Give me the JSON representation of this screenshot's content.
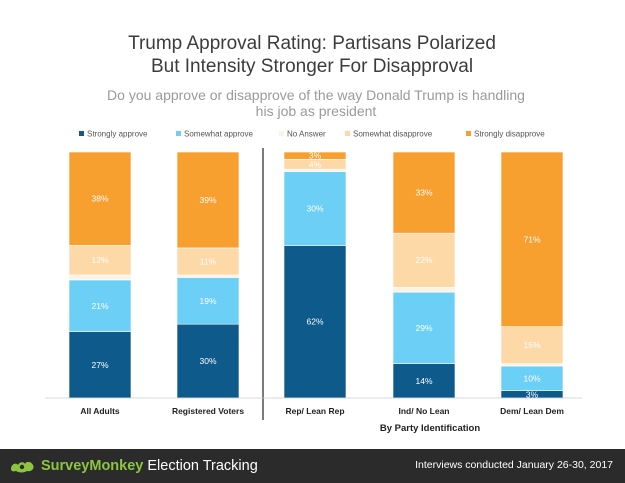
{
  "chart_data": {
    "type": "bar",
    "stacked": true,
    "title": [
      "Trump Approval Rating: Partisans Polarized",
      "But Intensity Stronger For Disapproval"
    ],
    "subtitle": [
      "Do you approve or disapprove of the way Donald Trump is handling",
      "his job as president"
    ],
    "categories": [
      "All Adults",
      "Registered Voters",
      "Rep/ Lean Rep",
      "Ind/ No Lean",
      "Dem/ Lean Dem"
    ],
    "group_label": "By Party Identification",
    "legend_position": "top",
    "series": [
      {
        "name": "Strongly approve",
        "color": "#0e5a8a",
        "values": [
          27,
          30,
          62,
          14,
          3
        ],
        "labels": [
          "27%",
          "30%",
          "62%",
          "14%",
          "3%"
        ]
      },
      {
        "name": "Somewhat approve",
        "color": "#6ccff6",
        "values": [
          21,
          19,
          30,
          29,
          10
        ],
        "labels": [
          "21%",
          "19%",
          "30%",
          "29%",
          "10%"
        ]
      },
      {
        "name": "No Answer",
        "color": "#fdf3e4",
        "values": [
          2,
          1,
          1,
          2,
          1
        ],
        "labels": [
          "",
          "",
          "",
          "",
          ""
        ]
      },
      {
        "name": "Somewhat disapprove",
        "color": "#fdd9a8",
        "values": [
          12,
          11,
          4,
          22,
          15
        ],
        "labels": [
          "12%",
          "11%",
          "4%",
          "22%",
          "15%"
        ]
      },
      {
        "name": "Strongly disapprove",
        "color": "#f7a030",
        "values": [
          38,
          39,
          3,
          33,
          71
        ],
        "labels": [
          "38%",
          "39%",
          "3%",
          "33%",
          "71%"
        ]
      }
    ]
  },
  "footer": {
    "brand_name": "SurveyMonkey",
    "brand_suffix": "Election Tracking",
    "note": "Interviews conducted January 26-30, 2017"
  }
}
